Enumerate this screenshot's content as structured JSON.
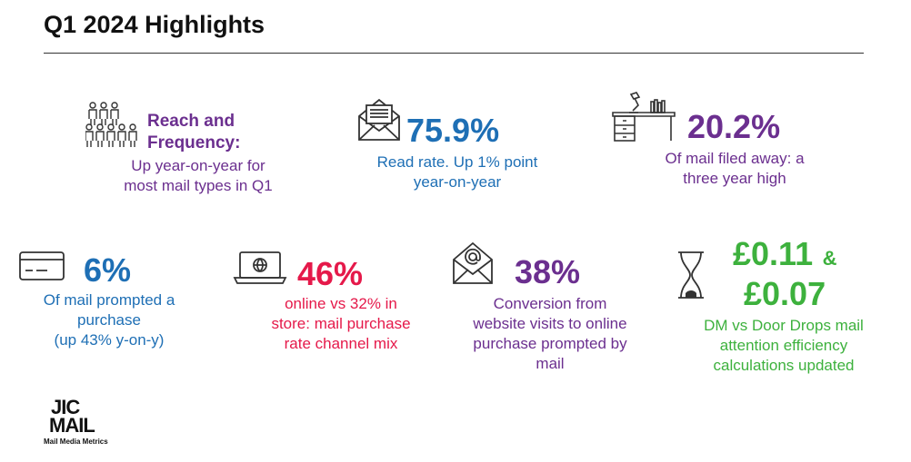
{
  "title": "Q1 2024 Highlights",
  "colors": {
    "purple": "#6b2f8f",
    "blue": "#1e6fb5",
    "red": "#e5194a",
    "green": "#3db13d"
  },
  "stats": {
    "reach": {
      "heading_line1": "Reach and",
      "heading_line2": "Frequency:",
      "line1": "Up year-on-year for",
      "line2": "most mail types in Q1",
      "icon": "people-group-icon"
    },
    "read_rate": {
      "value": "75.9%",
      "line1": "Read rate. Up 1% point",
      "line2": "year-on-year",
      "icon": "open-letter-icon"
    },
    "filed": {
      "value": "20.2%",
      "line1": "Of mail filed away: a",
      "line2": "three year high",
      "icon": "desk-icon"
    },
    "purchase": {
      "value": "6%",
      "line1": "Of mail prompted a",
      "line2": "purchase",
      "line3": "(up 43% y-on-y)",
      "icon": "credit-card-icon"
    },
    "online": {
      "value": "46%",
      "line1": "online vs 32% in",
      "line2": "store: mail purchase",
      "line3": "rate channel mix",
      "icon": "laptop-globe-icon"
    },
    "conversion": {
      "value": "38%",
      "line1": "Conversion from",
      "line2": "website visits to online",
      "line3": "purchase prompted by",
      "line4": "mail",
      "icon": "email-at-icon"
    },
    "efficiency": {
      "value1": "£0.11",
      "amp": "&",
      "value2": "£0.07",
      "line1": "DM vs Door Drops mail",
      "line2": "attention efficiency",
      "line3": "calculations updated",
      "icon": "hourglass-icon"
    }
  },
  "logo": {
    "line1": "JICMAIL",
    "line2": "Mail Media Metrics"
  }
}
